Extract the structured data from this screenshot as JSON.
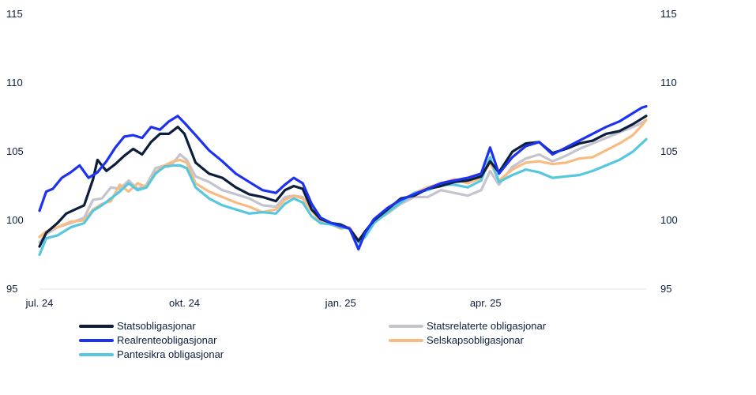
{
  "chart_data": {
    "type": "line",
    "title": "",
    "xlabel": "",
    "ylabel": "",
    "ylim": [
      95,
      115
    ],
    "yticks": [
      95,
      100,
      105,
      110,
      115
    ],
    "xticks": [
      {
        "label": "jul. 24",
        "t": 0
      },
      {
        "label": "okt. 24",
        "t": 65
      },
      {
        "label": "jan. 25",
        "t": 135
      },
      {
        "label": "apr. 25",
        "t": 200
      }
    ],
    "t_max": 272,
    "grid": false,
    "series": [
      {
        "name": "Statsrelaterte obligasjonar",
        "color": "#c3c4ce",
        "points": [
          [
            0,
            98.4
          ],
          [
            3,
            99.0
          ],
          [
            8,
            99.5
          ],
          [
            14,
            99.8
          ],
          [
            20,
            100.2
          ],
          [
            24,
            101.5
          ],
          [
            28,
            101.6
          ],
          [
            32,
            102.4
          ],
          [
            36,
            102.3
          ],
          [
            40,
            102.9
          ],
          [
            44,
            102.3
          ],
          [
            48,
            102.6
          ],
          [
            52,
            103.8
          ],
          [
            56,
            104.0
          ],
          [
            60,
            104.2
          ],
          [
            63,
            104.8
          ],
          [
            66,
            104.4
          ],
          [
            70,
            103.2
          ],
          [
            76,
            102.8
          ],
          [
            82,
            102.2
          ],
          [
            88,
            101.9
          ],
          [
            94,
            101.6
          ],
          [
            100,
            101.1
          ],
          [
            106,
            101.0
          ],
          [
            110,
            101.7
          ],
          [
            114,
            101.8
          ],
          [
            118,
            101.7
          ],
          [
            122,
            100.8
          ],
          [
            126,
            100.0
          ],
          [
            131,
            99.7
          ],
          [
            135,
            99.6
          ],
          [
            139,
            99.4
          ],
          [
            143,
            98.6
          ],
          [
            146,
            99.1
          ],
          [
            150,
            99.9
          ],
          [
            156,
            100.5
          ],
          [
            162,
            101.2
          ],
          [
            168,
            101.7
          ],
          [
            174,
            101.7
          ],
          [
            180,
            102.2
          ],
          [
            186,
            102.0
          ],
          [
            192,
            101.8
          ],
          [
            198,
            102.2
          ],
          [
            202,
            103.6
          ],
          [
            206,
            102.6
          ],
          [
            212,
            103.9
          ],
          [
            218,
            104.5
          ],
          [
            224,
            104.8
          ],
          [
            230,
            104.3
          ],
          [
            236,
            104.7
          ],
          [
            242,
            105.2
          ],
          [
            248,
            105.6
          ],
          [
            254,
            106.0
          ],
          [
            260,
            106.4
          ],
          [
            266,
            106.8
          ],
          [
            270,
            107.1
          ],
          [
            272,
            107.3
          ]
        ]
      },
      {
        "name": "Selskapsobligasjonar",
        "color": "#f8bc83",
        "points": [
          [
            0,
            98.8
          ],
          [
            3,
            99.2
          ],
          [
            8,
            99.5
          ],
          [
            14,
            99.9
          ],
          [
            20,
            100.0
          ],
          [
            24,
            100.8
          ],
          [
            28,
            101.2
          ],
          [
            32,
            101.4
          ],
          [
            36,
            102.6
          ],
          [
            40,
            102.1
          ],
          [
            44,
            102.7
          ],
          [
            48,
            102.4
          ],
          [
            52,
            103.5
          ],
          [
            56,
            104.0
          ],
          [
            60,
            104.3
          ],
          [
            63,
            104.4
          ],
          [
            66,
            104.2
          ],
          [
            70,
            102.7
          ],
          [
            76,
            102.1
          ],
          [
            82,
            101.7
          ],
          [
            88,
            101.3
          ],
          [
            94,
            101.0
          ],
          [
            100,
            100.6
          ],
          [
            106,
            100.8
          ],
          [
            110,
            101.5
          ],
          [
            114,
            101.8
          ],
          [
            118,
            101.6
          ],
          [
            122,
            100.7
          ],
          [
            126,
            99.9
          ],
          [
            131,
            99.7
          ],
          [
            135,
            99.4
          ],
          [
            139,
            99.5
          ],
          [
            143,
            98.5
          ],
          [
            146,
            99.0
          ],
          [
            150,
            100.1
          ],
          [
            156,
            100.7
          ],
          [
            162,
            101.4
          ],
          [
            168,
            102.0
          ],
          [
            174,
            102.4
          ],
          [
            180,
            102.7
          ],
          [
            186,
            103.0
          ],
          [
            192,
            102.7
          ],
          [
            198,
            103.1
          ],
          [
            202,
            104.2
          ],
          [
            206,
            102.9
          ],
          [
            212,
            103.7
          ],
          [
            218,
            104.2
          ],
          [
            224,
            104.3
          ],
          [
            230,
            104.1
          ],
          [
            236,
            104.2
          ],
          [
            242,
            104.5
          ],
          [
            248,
            104.6
          ],
          [
            254,
            105.1
          ],
          [
            260,
            105.6
          ],
          [
            266,
            106.2
          ],
          [
            270,
            106.9
          ],
          [
            272,
            107.3
          ]
        ]
      },
      {
        "name": "Pantesikra obligasjonar",
        "color": "#56c7de",
        "points": [
          [
            0,
            97.5
          ],
          [
            3,
            98.7
          ],
          [
            8,
            98.9
          ],
          [
            14,
            99.5
          ],
          [
            20,
            99.8
          ],
          [
            24,
            100.7
          ],
          [
            28,
            101.1
          ],
          [
            32,
            101.6
          ],
          [
            36,
            102.1
          ],
          [
            40,
            102.7
          ],
          [
            44,
            102.2
          ],
          [
            48,
            102.4
          ],
          [
            52,
            103.4
          ],
          [
            56,
            103.9
          ],
          [
            60,
            104.0
          ],
          [
            63,
            104.0
          ],
          [
            66,
            103.8
          ],
          [
            70,
            102.4
          ],
          [
            76,
            101.6
          ],
          [
            82,
            101.1
          ],
          [
            88,
            100.8
          ],
          [
            94,
            100.5
          ],
          [
            100,
            100.6
          ],
          [
            106,
            100.5
          ],
          [
            110,
            101.2
          ],
          [
            114,
            101.6
          ],
          [
            118,
            101.3
          ],
          [
            122,
            100.3
          ],
          [
            126,
            99.8
          ],
          [
            131,
            99.7
          ],
          [
            135,
            99.5
          ],
          [
            139,
            99.4
          ],
          [
            143,
            98.4
          ],
          [
            146,
            98.8
          ],
          [
            150,
            99.8
          ],
          [
            156,
            100.6
          ],
          [
            162,
            101.3
          ],
          [
            168,
            102.0
          ],
          [
            174,
            102.2
          ],
          [
            180,
            102.6
          ],
          [
            186,
            102.6
          ],
          [
            192,
            102.4
          ],
          [
            198,
            102.9
          ],
          [
            202,
            104.6
          ],
          [
            206,
            102.8
          ],
          [
            212,
            103.3
          ],
          [
            218,
            103.7
          ],
          [
            224,
            103.5
          ],
          [
            230,
            103.1
          ],
          [
            236,
            103.2
          ],
          [
            242,
            103.3
          ],
          [
            248,
            103.6
          ],
          [
            254,
            104.0
          ],
          [
            260,
            104.4
          ],
          [
            266,
            105.0
          ],
          [
            270,
            105.6
          ],
          [
            272,
            105.9
          ]
        ]
      },
      {
        "name": "Statsobligasjonar",
        "color": "#0b1e3c",
        "points": [
          [
            0,
            98.1
          ],
          [
            3,
            99.1
          ],
          [
            8,
            99.8
          ],
          [
            12,
            100.5
          ],
          [
            16,
            100.8
          ],
          [
            20,
            101.1
          ],
          [
            24,
            103.0
          ],
          [
            26,
            104.4
          ],
          [
            30,
            103.6
          ],
          [
            34,
            104.1
          ],
          [
            38,
            104.7
          ],
          [
            42,
            105.2
          ],
          [
            46,
            104.8
          ],
          [
            50,
            105.7
          ],
          [
            54,
            106.3
          ],
          [
            58,
            106.3
          ],
          [
            62,
            106.8
          ],
          [
            65,
            106.3
          ],
          [
            70,
            104.2
          ],
          [
            76,
            103.4
          ],
          [
            82,
            103.1
          ],
          [
            88,
            102.4
          ],
          [
            94,
            101.9
          ],
          [
            100,
            101.7
          ],
          [
            106,
            101.4
          ],
          [
            110,
            102.2
          ],
          [
            114,
            102.5
          ],
          [
            118,
            102.3
          ],
          [
            122,
            100.8
          ],
          [
            126,
            100.1
          ],
          [
            131,
            99.8
          ],
          [
            135,
            99.7
          ],
          [
            139,
            99.4
          ],
          [
            143,
            98.5
          ],
          [
            146,
            99.2
          ],
          [
            150,
            100.0
          ],
          [
            156,
            100.8
          ],
          [
            162,
            101.6
          ],
          [
            168,
            101.8
          ],
          [
            174,
            102.3
          ],
          [
            180,
            102.5
          ],
          [
            186,
            102.8
          ],
          [
            192,
            102.9
          ],
          [
            198,
            103.2
          ],
          [
            202,
            104.3
          ],
          [
            206,
            103.5
          ],
          [
            212,
            105.0
          ],
          [
            218,
            105.6
          ],
          [
            224,
            105.7
          ],
          [
            230,
            104.9
          ],
          [
            236,
            105.2
          ],
          [
            242,
            105.6
          ],
          [
            248,
            105.8
          ],
          [
            254,
            106.3
          ],
          [
            260,
            106.5
          ],
          [
            266,
            107.0
          ],
          [
            270,
            107.4
          ],
          [
            272,
            107.6
          ]
        ]
      },
      {
        "name": "Realrenteobligasjonar",
        "color": "#1c32f0",
        "points": [
          [
            0,
            100.7
          ],
          [
            3,
            102.1
          ],
          [
            6,
            102.3
          ],
          [
            10,
            103.1
          ],
          [
            14,
            103.5
          ],
          [
            18,
            104.0
          ],
          [
            22,
            103.1
          ],
          [
            26,
            103.5
          ],
          [
            30,
            104.3
          ],
          [
            34,
            105.3
          ],
          [
            38,
            106.1
          ],
          [
            42,
            106.2
          ],
          [
            46,
            106.0
          ],
          [
            50,
            106.8
          ],
          [
            54,
            106.6
          ],
          [
            58,
            107.2
          ],
          [
            62,
            107.6
          ],
          [
            65,
            107.1
          ],
          [
            70,
            106.2
          ],
          [
            76,
            105.1
          ],
          [
            82,
            104.3
          ],
          [
            88,
            103.4
          ],
          [
            94,
            102.8
          ],
          [
            100,
            102.2
          ],
          [
            106,
            102.0
          ],
          [
            110,
            102.6
          ],
          [
            114,
            103.1
          ],
          [
            118,
            102.7
          ],
          [
            122,
            101.2
          ],
          [
            126,
            100.2
          ],
          [
            131,
            99.8
          ],
          [
            135,
            99.6
          ],
          [
            139,
            99.4
          ],
          [
            143,
            97.9
          ],
          [
            146,
            99.1
          ],
          [
            150,
            100.1
          ],
          [
            156,
            100.9
          ],
          [
            162,
            101.5
          ],
          [
            168,
            101.9
          ],
          [
            174,
            102.3
          ],
          [
            180,
            102.7
          ],
          [
            186,
            102.9
          ],
          [
            192,
            103.1
          ],
          [
            198,
            103.4
          ],
          [
            202,
            105.3
          ],
          [
            206,
            103.4
          ],
          [
            212,
            104.6
          ],
          [
            218,
            105.4
          ],
          [
            224,
            105.7
          ],
          [
            230,
            104.8
          ],
          [
            236,
            105.3
          ],
          [
            242,
            105.8
          ],
          [
            248,
            106.3
          ],
          [
            254,
            106.8
          ],
          [
            260,
            107.2
          ],
          [
            266,
            107.8
          ],
          [
            270,
            108.2
          ],
          [
            272,
            108.3
          ]
        ]
      }
    ],
    "legend": [
      {
        "name": "Statsobligasjonar",
        "color": "#0b1e3c"
      },
      {
        "name": "Statsrelaterte obligasjonar",
        "color": "#c3c4ce"
      },
      {
        "name": "Realrenteobligasjonar",
        "color": "#1c32f0"
      },
      {
        "name": "Selskapsobligasjonar",
        "color": "#f8bc83"
      },
      {
        "name": "Pantesikra obligasjonar",
        "color": "#56c7de"
      }
    ]
  }
}
